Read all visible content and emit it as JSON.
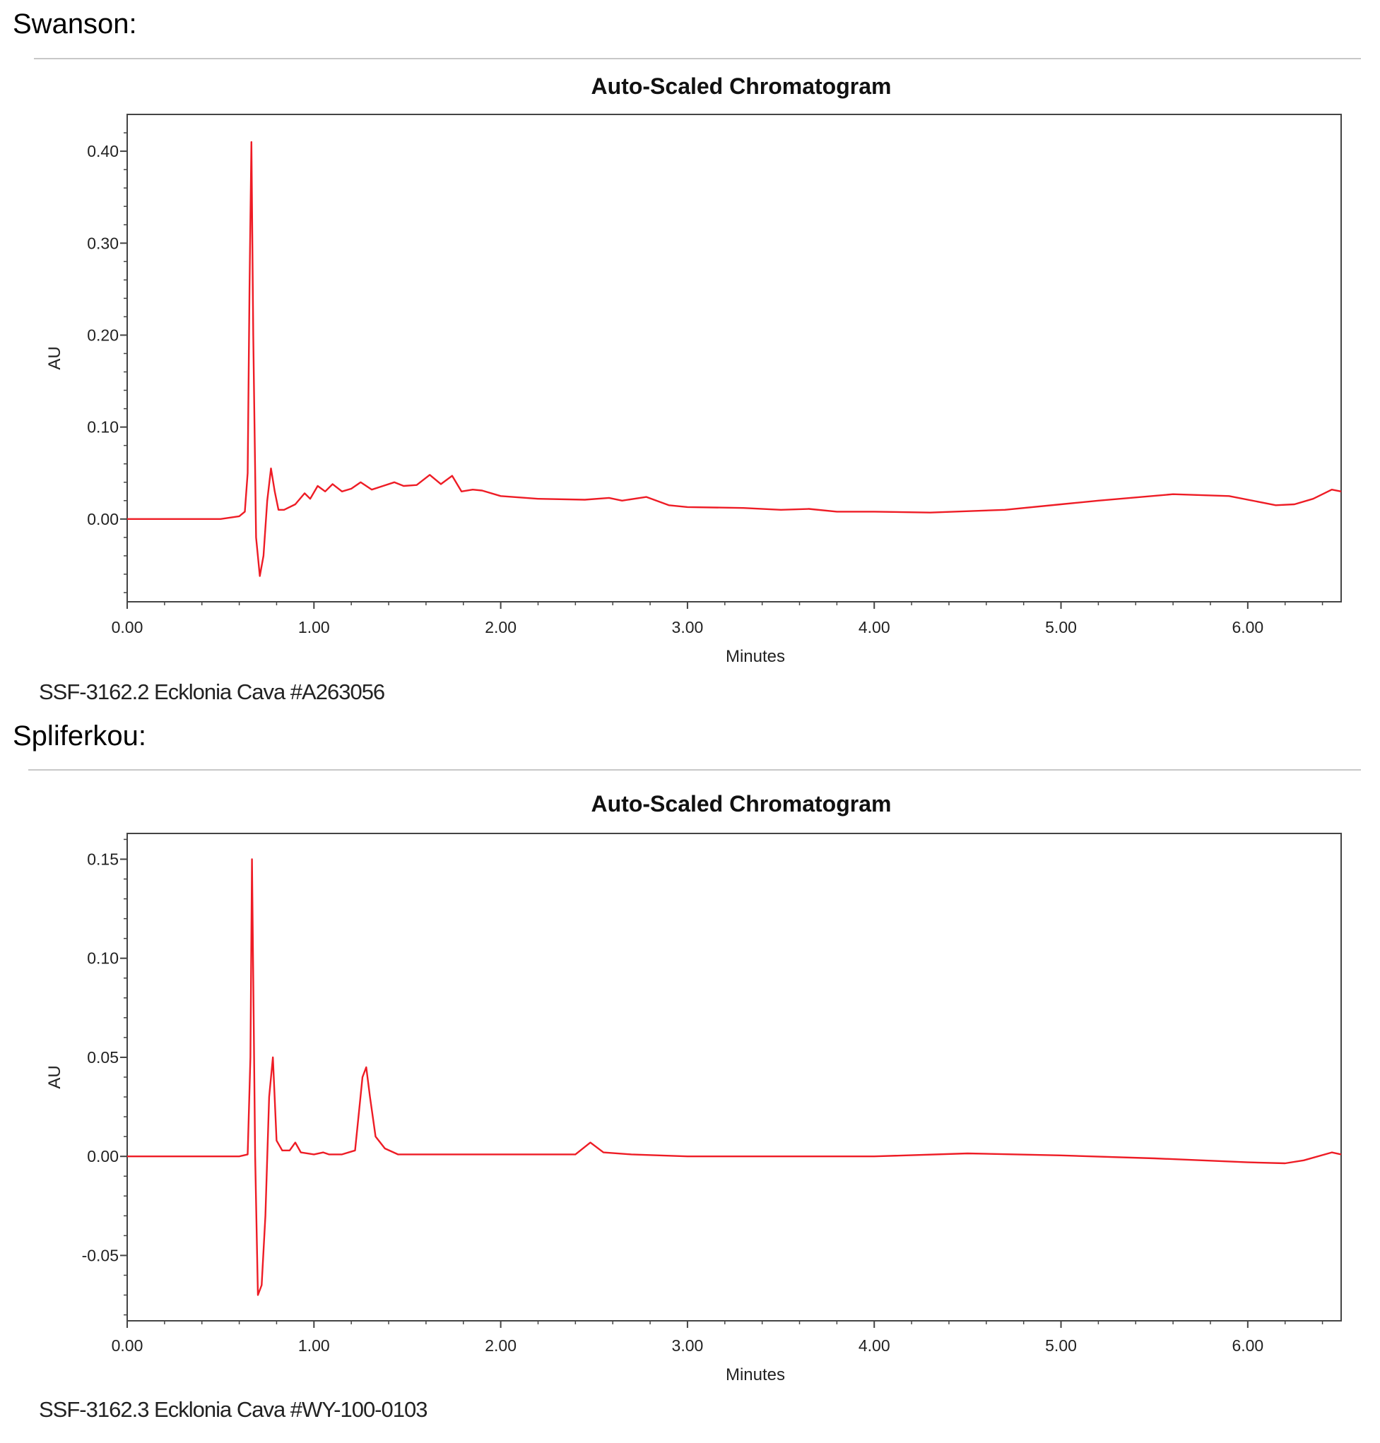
{
  "sections": [
    {
      "label": "Swanson:",
      "caption": "SSF-3162.2 Ecklonia Cava #A263056"
    },
    {
      "label": "Spliferkou:",
      "caption": "SSF-3162.3 Ecklonia Cava #WY-100-0103"
    }
  ],
  "colors": {
    "trace": "#ee1c25",
    "frame": "#444444",
    "rule": "#c8c8c8"
  },
  "chart_data": [
    {
      "type": "line",
      "title": "Auto-Scaled Chromatogram",
      "xlabel": "Minutes",
      "ylabel": "AU",
      "xlim": [
        0,
        6.5
      ],
      "ylim": [
        -0.09,
        0.44
      ],
      "x_ticks": [
        0,
        1,
        2,
        3,
        4,
        5,
        6
      ],
      "x_tick_labels": [
        "0.00",
        "1.00",
        "2.00",
        "3.00",
        "4.00",
        "5.00",
        "6.00"
      ],
      "y_ticks": [
        0,
        0.1,
        0.2,
        0.3,
        0.4
      ],
      "y_tick_labels": [
        "0.00",
        "0.10",
        "0.20",
        "0.30",
        "0.40"
      ],
      "grid": false,
      "series": [
        {
          "x": [
            0,
            0.5,
            0.6,
            0.63,
            0.645,
            0.655,
            0.665,
            0.675,
            0.69,
            0.71,
            0.73,
            0.75,
            0.77,
            0.79,
            0.81,
            0.84,
            0.9,
            0.95,
            0.98,
            1.02,
            1.06,
            1.1,
            1.15,
            1.2,
            1.25,
            1.31,
            1.37,
            1.43,
            1.48,
            1.55,
            1.62,
            1.68,
            1.74,
            1.79,
            1.85,
            1.9,
            2.0,
            2.2,
            2.45,
            2.58,
            2.65,
            2.78,
            2.9,
            3.0,
            3.3,
            3.5,
            3.65,
            3.8,
            4.0,
            4.3,
            4.7,
            5.0,
            5.2,
            5.6,
            5.9,
            6.15,
            6.25,
            6.35,
            6.45,
            6.5
          ],
          "y": [
            0,
            0,
            0.003,
            0.008,
            0.05,
            0.25,
            0.41,
            0.2,
            -0.02,
            -0.062,
            -0.04,
            0.02,
            0.055,
            0.03,
            0.01,
            0.01,
            0.016,
            0.028,
            0.022,
            0.036,
            0.03,
            0.038,
            0.03,
            0.033,
            0.04,
            0.032,
            0.036,
            0.04,
            0.036,
            0.037,
            0.048,
            0.038,
            0.047,
            0.03,
            0.032,
            0.031,
            0.025,
            0.022,
            0.021,
            0.023,
            0.02,
            0.024,
            0.015,
            0.013,
            0.012,
            0.01,
            0.011,
            0.008,
            0.008,
            0.007,
            0.01,
            0.016,
            0.02,
            0.027,
            0.025,
            0.015,
            0.016,
            0.022,
            0.032,
            0.03
          ]
        }
      ]
    },
    {
      "type": "line",
      "title": "Auto-Scaled Chromatogram",
      "xlabel": "Minutes",
      "ylabel": "AU",
      "xlim": [
        0,
        6.5
      ],
      "ylim": [
        -0.083,
        0.163
      ],
      "x_ticks": [
        0,
        1,
        2,
        3,
        4,
        5,
        6
      ],
      "x_tick_labels": [
        "0.00",
        "1.00",
        "2.00",
        "3.00",
        "4.00",
        "5.00",
        "6.00"
      ],
      "y_ticks": [
        -0.05,
        0,
        0.05,
        0.1,
        0.15
      ],
      "y_tick_labels": [
        "-0.05",
        "0.00",
        "0.05",
        "0.10",
        "0.15"
      ],
      "grid": false,
      "series": [
        {
          "x": [
            0,
            0.6,
            0.645,
            0.66,
            0.668,
            0.675,
            0.685,
            0.7,
            0.72,
            0.74,
            0.76,
            0.78,
            0.8,
            0.83,
            0.87,
            0.9,
            0.93,
            1.0,
            1.05,
            1.08,
            1.15,
            1.22,
            1.26,
            1.28,
            1.3,
            1.33,
            1.38,
            1.45,
            1.6,
            2.0,
            2.05,
            2.4,
            2.48,
            2.55,
            2.7,
            3.0,
            4.0,
            4.5,
            5.0,
            5.5,
            6.0,
            6.2,
            6.3,
            6.45,
            6.5
          ],
          "y": [
            0,
            0,
            0.001,
            0.05,
            0.15,
            0.09,
            0,
            -0.07,
            -0.065,
            -0.03,
            0.03,
            0.05,
            0.008,
            0.003,
            0.003,
            0.007,
            0.002,
            0.001,
            0.002,
            0.001,
            0.001,
            0.003,
            0.04,
            0.045,
            0.03,
            0.01,
            0.004,
            0.001,
            0.001,
            0.001,
            0.001,
            0.001,
            0.007,
            0.002,
            0.001,
            0,
            0,
            0.0015,
            0.0005,
            -0.001,
            -0.003,
            -0.0035,
            -0.002,
            0.002,
            0.001
          ]
        }
      ]
    }
  ]
}
